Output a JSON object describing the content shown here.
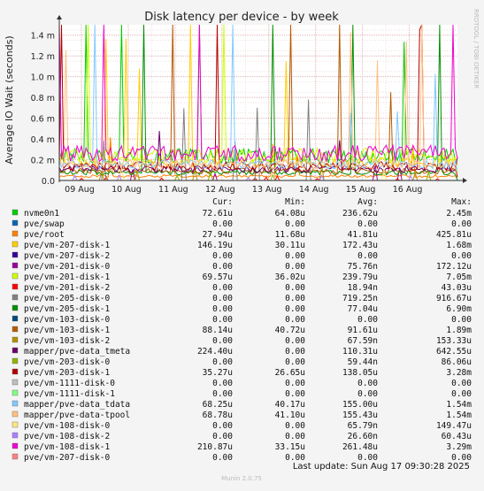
{
  "chart_data": {
    "type": "line",
    "title": "Disk latency per device - by week",
    "ylabel": "Average IO Wait (seconds)",
    "side_label": "RRDTOOL / TOBI OETIKER",
    "y_ticks": [
      "0.0",
      "0.2 m",
      "0.4 m",
      "0.6 m",
      "0.8 m",
      "1.0 m",
      "1.2 m",
      "1.4 m"
    ],
    "ylim": [
      0,
      1.5
    ],
    "x_ticks": [
      "09 Aug",
      "10 Aug",
      "11 Aug",
      "12 Aug",
      "13 Aug",
      "14 Aug",
      "15 Aug",
      "16 Aug"
    ],
    "grid": true,
    "legend_header": {
      "cur": "Cur:",
      "min": "Min:",
      "avg": "Avg:",
      "max": "Max:"
    },
    "series": [
      {
        "name": "nvme0n1",
        "color": "#00cc00",
        "cur": "72.61u",
        "min": "64.08u",
        "avg": "236.62u",
        "max": "2.45m"
      },
      {
        "name": "pve/swap",
        "color": "#0066b3",
        "cur": "0.00",
        "min": "0.00",
        "avg": "0.00",
        "max": "0.00"
      },
      {
        "name": "pve/root",
        "color": "#ff8000",
        "cur": "27.94u",
        "min": "11.68u",
        "avg": "41.81u",
        "max": "425.81u"
      },
      {
        "name": "pve/vm-207-disk-1",
        "color": "#ffcc00",
        "cur": "146.19u",
        "min": "30.11u",
        "avg": "172.43u",
        "max": "1.68m"
      },
      {
        "name": "pve/vm-207-disk-2",
        "color": "#330099",
        "cur": "0.00",
        "min": "0.00",
        "avg": "0.00",
        "max": "0.00"
      },
      {
        "name": "pve/vm-201-disk-0",
        "color": "#990099",
        "cur": "0.00",
        "min": "0.00",
        "avg": "75.76n",
        "max": "172.12u"
      },
      {
        "name": "pve/vm-201-disk-1",
        "color": "#ccff00",
        "cur": "69.57u",
        "min": "36.02u",
        "avg": "239.79u",
        "max": "7.05m"
      },
      {
        "name": "pve/vm-201-disk-2",
        "color": "#ff0000",
        "cur": "0.00",
        "min": "0.00",
        "avg": "18.94n",
        "max": "43.03u"
      },
      {
        "name": "pve/vm-205-disk-0",
        "color": "#808080",
        "cur": "0.00",
        "min": "0.00",
        "avg": "719.25n",
        "max": "916.67u"
      },
      {
        "name": "pve/vm-205-disk-1",
        "color": "#008f00",
        "cur": "0.00",
        "min": "0.00",
        "avg": "77.04u",
        "max": "6.90m"
      },
      {
        "name": "pve/vm-103-disk-0",
        "color": "#00487d",
        "cur": "0.00",
        "min": "0.00",
        "avg": "0.00",
        "max": "0.00"
      },
      {
        "name": "pve/vm-103-disk-1",
        "color": "#b35a00",
        "cur": "88.14u",
        "min": "40.72u",
        "avg": "91.61u",
        "max": "1.89m"
      },
      {
        "name": "pve/vm-103-disk-2",
        "color": "#b38f00",
        "cur": "0.00",
        "min": "0.00",
        "avg": "67.59n",
        "max": "153.33u"
      },
      {
        "name": "mapper/pve-data_tmeta",
        "color": "#6b006b",
        "cur": "224.40u",
        "min": "0.00",
        "avg": "110.31u",
        "max": "642.55u"
      },
      {
        "name": "pve/vm-203-disk-0",
        "color": "#8fb300",
        "cur": "0.00",
        "min": "0.00",
        "avg": "59.44n",
        "max": "86.06u"
      },
      {
        "name": "pve/vm-203-disk-1",
        "color": "#b30000",
        "cur": "35.27u",
        "min": "26.65u",
        "avg": "138.05u",
        "max": "3.28m"
      },
      {
        "name": "pve/vm-1111-disk-0",
        "color": "#bebebe",
        "cur": "0.00",
        "min": "0.00",
        "avg": "0.00",
        "max": "0.00"
      },
      {
        "name": "pve/vm-1111-disk-1",
        "color": "#80ff80",
        "cur": "0.00",
        "min": "0.00",
        "avg": "0.00",
        "max": "0.00"
      },
      {
        "name": "mapper/pve-data_tdata",
        "color": "#80c9ff",
        "cur": "68.25u",
        "min": "40.17u",
        "avg": "155.00u",
        "max": "1.54m"
      },
      {
        "name": "mapper/pve-data-tpool",
        "color": "#ffc080",
        "cur": "68.78u",
        "min": "41.10u",
        "avg": "155.43u",
        "max": "1.54m"
      },
      {
        "name": "pve/vm-108-disk-0",
        "color": "#ffe680",
        "cur": "0.00",
        "min": "0.00",
        "avg": "65.79n",
        "max": "149.47u"
      },
      {
        "name": "pve/vm-108-disk-2",
        "color": "#aa80ff",
        "cur": "0.00",
        "min": "0.00",
        "avg": "26.60n",
        "max": "60.43u"
      },
      {
        "name": "pve/vm-108-disk-1",
        "color": "#ee00cc",
        "cur": "210.87u",
        "min": "33.15u",
        "avg": "261.48u",
        "max": "3.29m"
      },
      {
        "name": "pve/vm-207-disk-0",
        "color": "#ff8080",
        "cur": "0.00",
        "min": "0.00",
        "avg": "0.00",
        "max": "0.00"
      }
    ],
    "last_update": "Last update: Sun Aug 17 09:30:28 2025",
    "footer": "Munin 2.0.75"
  }
}
